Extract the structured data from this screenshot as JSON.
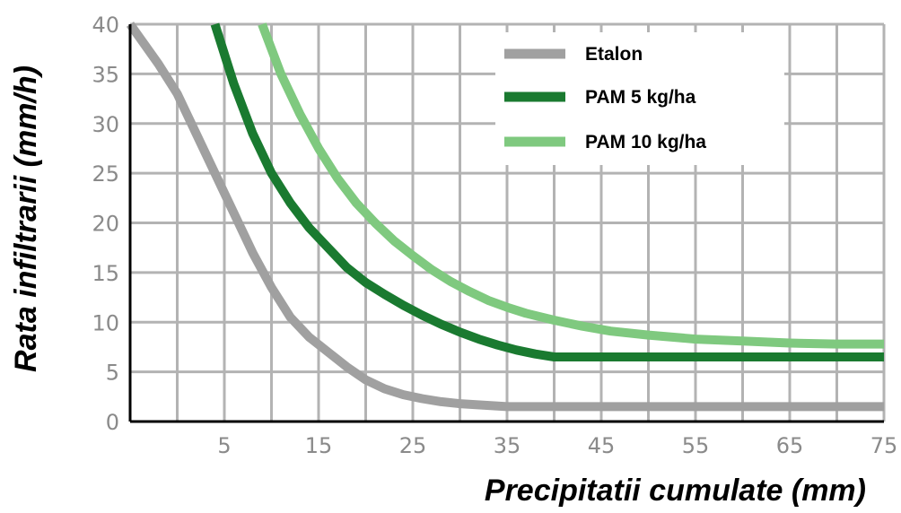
{
  "chart_data": {
    "type": "line",
    "xlabel": "Precipitatii cumulate (mm)",
    "ylabel": "Rata infiltrarii (mm/h)",
    "xlim": [
      -5,
      75
    ],
    "ylim": [
      0,
      40
    ],
    "x_ticks": [
      "5",
      "15",
      "25",
      "35",
      "45",
      "55",
      "65",
      "75"
    ],
    "y_ticks": [
      "0",
      "5",
      "10",
      "15",
      "20",
      "25",
      "30",
      "35",
      "40"
    ],
    "grid": true,
    "legend_position": "top-right",
    "series": [
      {
        "name": "Etalon",
        "color": "#a0a0a0",
        "x": [
          -5,
          -2,
          0,
          2,
          4,
          6,
          8,
          10,
          12,
          14,
          16,
          18,
          20,
          22,
          24,
          26,
          28,
          30,
          35,
          40,
          50,
          60,
          70,
          75
        ],
        "y": [
          40,
          36,
          33,
          29,
          25,
          21,
          17,
          13.5,
          10.5,
          8.5,
          7,
          5.5,
          4.2,
          3.3,
          2.7,
          2.3,
          2,
          1.8,
          1.5,
          1.5,
          1.5,
          1.5,
          1.5,
          1.5
        ]
      },
      {
        "name": "PAM 5 kg/ha",
        "color": "#1a7a30",
        "x": [
          4,
          6,
          8,
          10,
          12,
          14,
          16,
          18,
          20,
          22,
          24,
          26,
          28,
          30,
          32,
          34,
          36,
          38,
          40,
          45,
          50,
          60,
          70,
          75
        ],
        "y": [
          40,
          34,
          29,
          25,
          22,
          19.5,
          17.5,
          15.5,
          14,
          12.8,
          11.7,
          10.7,
          9.8,
          9,
          8.3,
          7.7,
          7.2,
          6.8,
          6.5,
          6.5,
          6.5,
          6.5,
          6.5,
          6.5
        ]
      },
      {
        "name": "PAM 10 kg/ha",
        "color": "#7fc97f",
        "x": [
          9,
          11,
          13,
          15,
          17,
          19,
          21,
          23,
          25,
          27,
          29,
          31,
          33,
          35,
          37,
          40,
          43,
          46,
          50,
          55,
          60,
          65,
          70,
          75
        ],
        "y": [
          40,
          35,
          31,
          27.5,
          24.5,
          22,
          20,
          18.2,
          16.7,
          15.3,
          14.1,
          13.1,
          12.2,
          11.5,
          10.9,
          10.2,
          9.6,
          9.1,
          8.7,
          8.3,
          8.1,
          7.9,
          7.8,
          7.8
        ]
      }
    ]
  }
}
